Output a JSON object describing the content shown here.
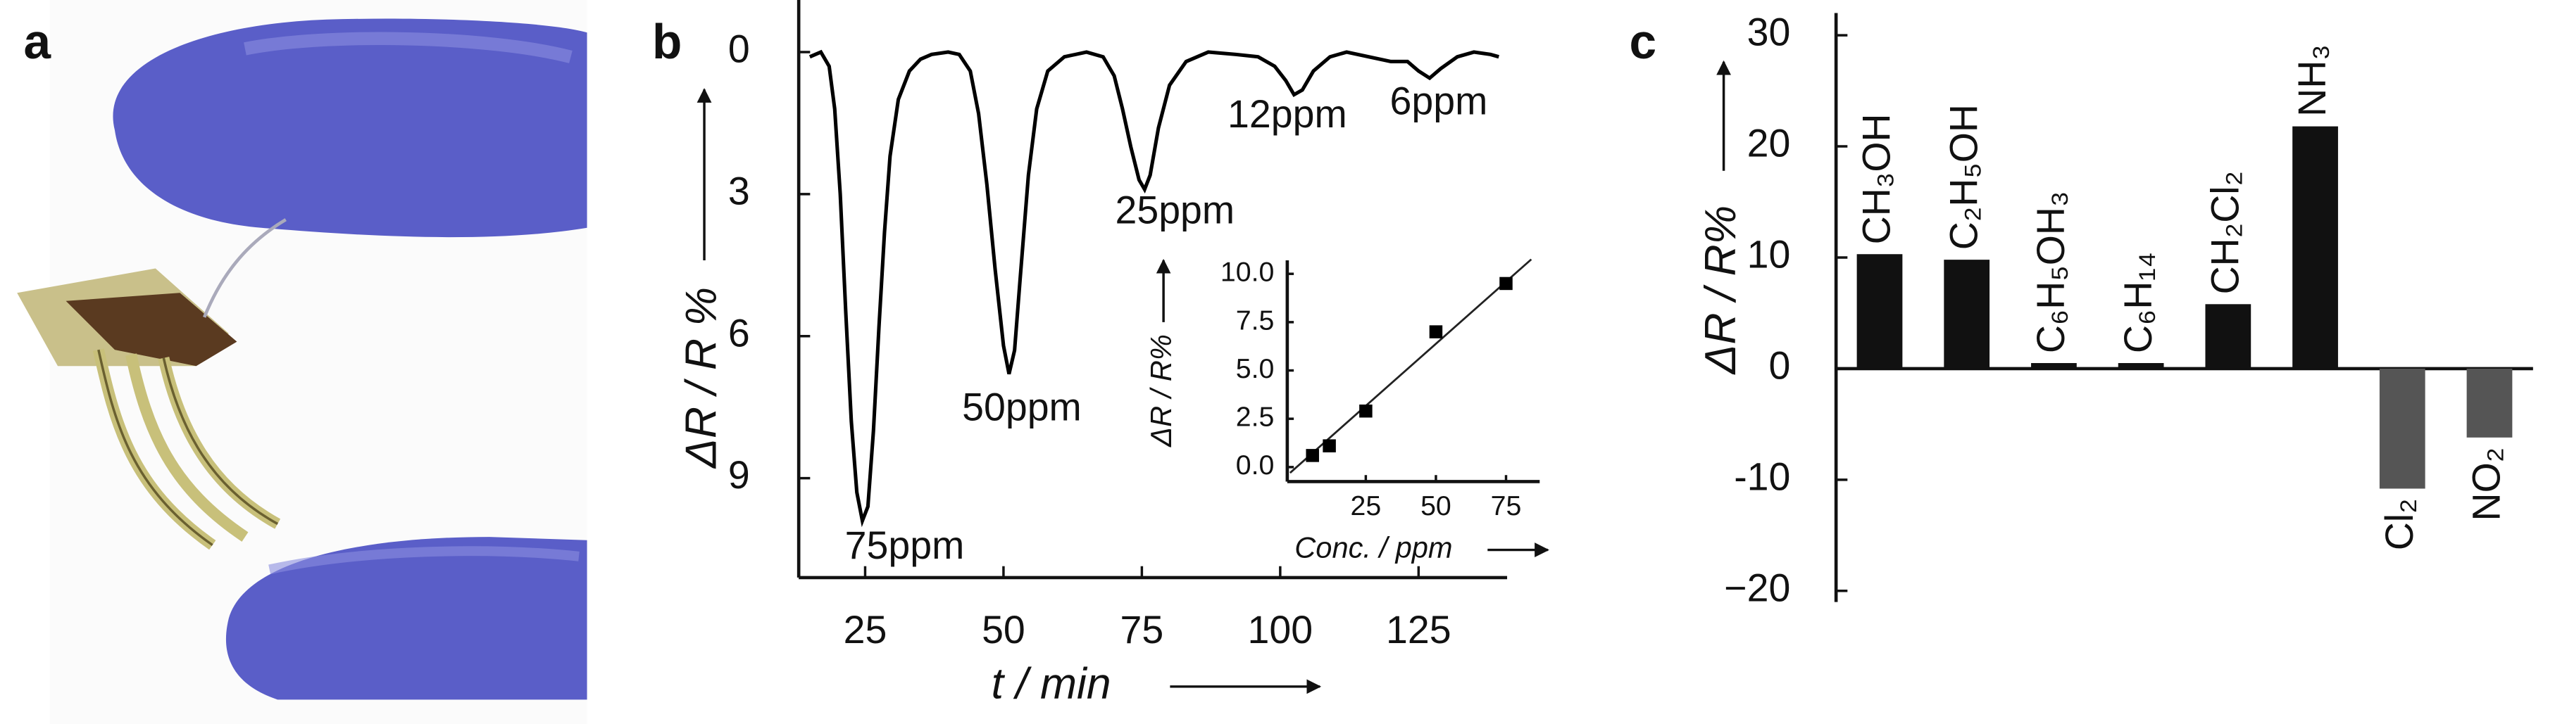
{
  "panel_labels": [
    "a",
    "b",
    "c"
  ],
  "chart_data": [
    {
      "type": "line",
      "ylabel": "ΔR / R %",
      "xlabel": "t / min",
      "color": "#000000",
      "x": [
        15,
        17,
        18.5,
        19.5,
        20.5,
        21.5,
        22.5,
        23.5,
        24.5,
        25.5,
        26.5,
        27.5,
        28.5,
        29.5,
        31,
        33,
        35,
        37,
        40,
        42,
        44,
        45.5,
        47,
        48.5,
        50,
        51,
        52,
        53,
        54.5,
        56,
        58,
        61,
        65,
        68,
        70,
        71.5,
        73,
        74.5,
        75.5,
        76.5,
        78,
        80,
        83,
        87,
        92,
        96,
        99,
        101,
        102.5,
        104,
        106,
        109,
        112,
        116,
        120,
        123,
        125,
        127,
        129,
        132,
        135,
        138,
        139.5
      ],
      "values": [
        0.1,
        0.0,
        0.3,
        1.2,
        3.0,
        5.5,
        7.8,
        9.3,
        9.9,
        9.6,
        8.0,
        5.8,
        3.8,
        2.2,
        1.0,
        0.4,
        0.15,
        0.05,
        0.0,
        0.05,
        0.4,
        1.3,
        2.8,
        4.6,
        6.2,
        6.8,
        6.3,
        4.8,
        2.6,
        1.2,
        0.4,
        0.1,
        0.0,
        0.1,
        0.5,
        1.2,
        2.0,
        2.7,
        2.9,
        2.6,
        1.6,
        0.7,
        0.2,
        0.0,
        0.05,
        0.1,
        0.3,
        0.6,
        0.9,
        0.8,
        0.4,
        0.1,
        0.0,
        0.1,
        0.2,
        0.2,
        0.4,
        0.55,
        0.35,
        0.1,
        0.0,
        0.05,
        0.1
      ],
      "xlim": [
        13,
        141
      ],
      "ylim": [
        11.1,
        -1.1
      ],
      "xticks": [
        25,
        50,
        75,
        100,
        125
      ],
      "yticks": [
        0,
        3,
        6,
        9
      ],
      "annotations": [
        "75ppm",
        "50ppm",
        "25ppm",
        "12ppm",
        "6ppm"
      ]
    },
    {
      "type": "scatter",
      "ylabel": "ΔR / R%",
      "xlabel": "Conc. / ppm",
      "color": "#000000",
      "x": [
        6,
        12,
        25,
        50,
        75
      ],
      "values": [
        0.6,
        1.1,
        2.9,
        7.0,
        9.5
      ],
      "fit": {
        "x": [
          -2,
          84
        ],
        "values": [
          -0.3,
          10.75
        ]
      },
      "xlim": [
        -3,
        87
      ],
      "ylim": [
        -0.75,
        10.7
      ],
      "xticks": [
        25,
        50,
        75
      ],
      "yticks": [
        {
          "value": 0,
          "label": "0.0"
        },
        {
          "value": 2.5,
          "label": "2.5"
        },
        {
          "value": 5,
          "label": "5.0"
        },
        {
          "value": 7.5,
          "label": "7.5"
        },
        {
          "value": 10,
          "label": "10.0"
        }
      ]
    },
    {
      "type": "bar",
      "ylabel": "ΔR / R%",
      "categories": [
        "CH₃OH",
        "C₂H₅OH",
        "C₆H₅OH₃",
        "C₆H₁₄",
        "CH₂Cl₂",
        "NH₃",
        "Cl₂",
        "NO₂"
      ],
      "values": [
        10.3,
        9.8,
        0.5,
        0.5,
        5.8,
        21.8,
        -10.8,
        -6.2
      ],
      "colors": [
        "#111111",
        "#111111",
        "#111111",
        "#111111",
        "#111111",
        "#111111",
        "#555555",
        "#555555"
      ],
      "ylim": [
        -21,
        32
      ],
      "yticks": [
        30,
        20,
        10,
        0,
        -10,
        {
          "value": -20,
          "label": "−20"
        }
      ]
    }
  ]
}
